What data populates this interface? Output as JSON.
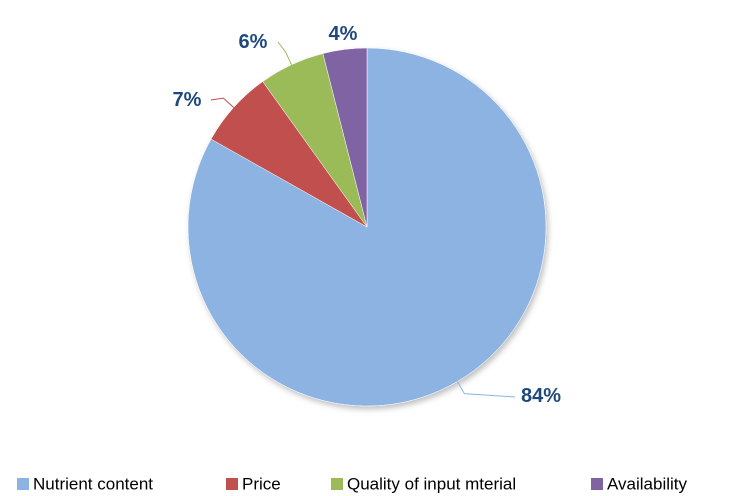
{
  "chart_data": {
    "type": "pie",
    "title": "",
    "categories": [
      "Nutrient content",
      "Price",
      "Quality of input mterial",
      "Availability"
    ],
    "values": [
      84,
      7,
      6,
      4
    ],
    "labels": [
      "84%",
      "7%",
      "6%",
      "4%"
    ],
    "colors": [
      "#8db3e2",
      "#c0504d",
      "#9bbb59",
      "#8064a2"
    ],
    "label_color": "#1f497d",
    "legend_position": "bottom",
    "start_angle_deg": 0,
    "direction": "clockwise"
  }
}
